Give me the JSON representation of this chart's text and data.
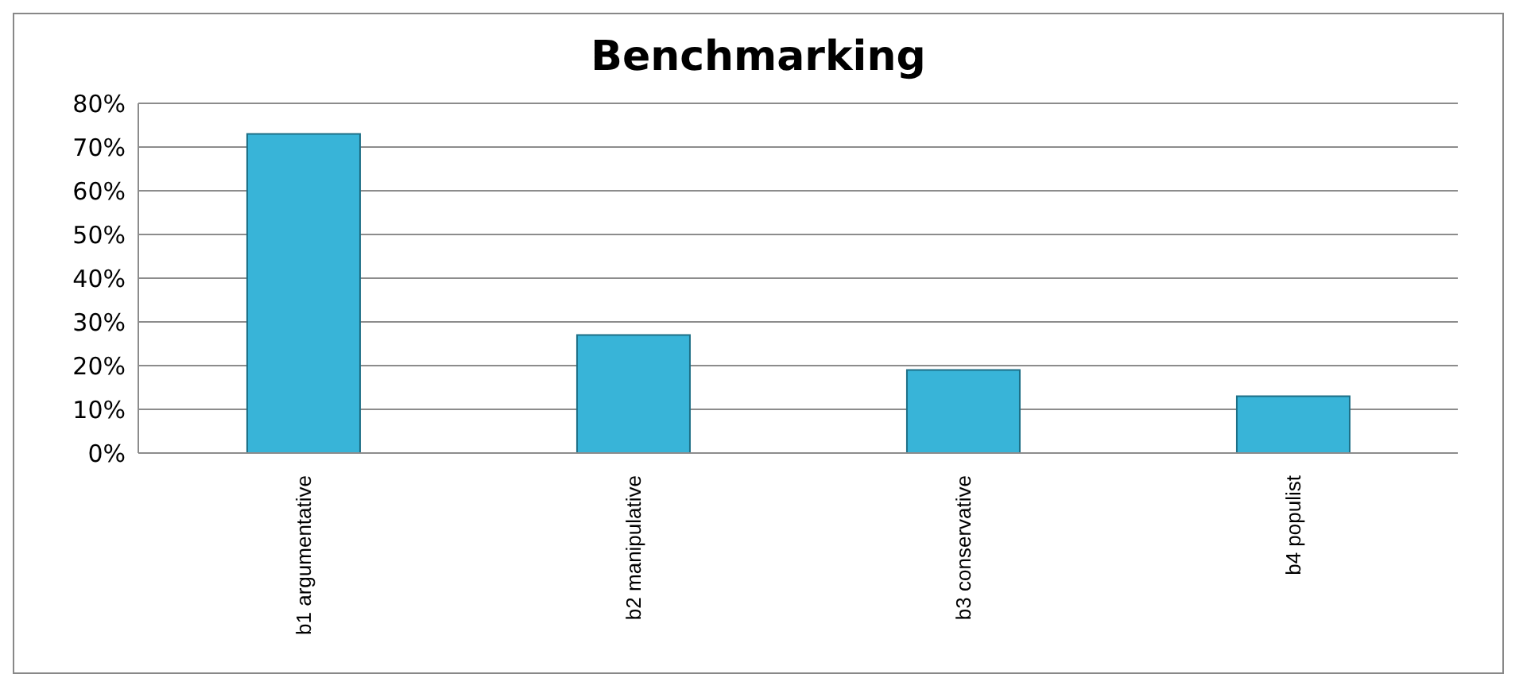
{
  "chart_data": {
    "type": "bar",
    "title": "Benchmarking",
    "categories": [
      "b1 argumentative",
      "b2 manipulative",
      "b3 conservative",
      "b4 populist"
    ],
    "values": [
      73,
      27,
      19,
      13
    ],
    "color": "#38b4d8",
    "ylim": [
      0,
      80
    ],
    "yticks": [
      {
        "value": 0,
        "label": "0%"
      },
      {
        "value": 10,
        "label": "10%"
      },
      {
        "value": 20,
        "label": "20%"
      },
      {
        "value": 30,
        "label": "30%"
      },
      {
        "value": 40,
        "label": "40%"
      },
      {
        "value": 50,
        "label": "50%"
      },
      {
        "value": 60,
        "label": "60%"
      },
      {
        "value": 70,
        "label": "70%"
      },
      {
        "value": 80,
        "label": "80%"
      }
    ],
    "grid": "y"
  }
}
